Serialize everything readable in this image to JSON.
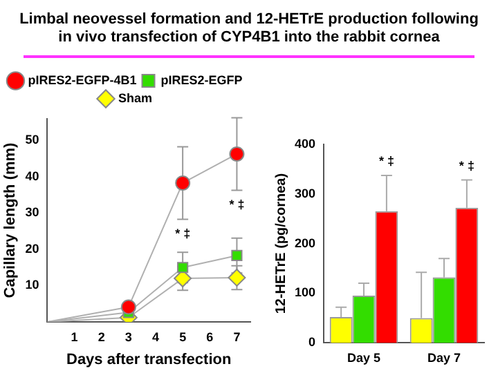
{
  "chart_data": [
    {
      "type": "line",
      "title": "Limbal neovessel formation and 12-HETrE production following in vivo transfection of CYP4B1 into the rabbit cornea",
      "xlabel": "Days after transfection",
      "ylabel": "Capillary length (mm)",
      "x": [
        0,
        3,
        5,
        7
      ],
      "xlim": [
        0,
        7.5
      ],
      "xticks": [
        1,
        2,
        3,
        4,
        5,
        6,
        7
      ],
      "ylim": [
        0,
        56
      ],
      "yticks": [
        10,
        20,
        30,
        40,
        50
      ],
      "grid": false,
      "legend": "top",
      "series": [
        {
          "name": "pIRES2-EGFP-4B1",
          "color": "#ff0000",
          "marker": "circle",
          "values": [
            0,
            4.1,
            38.3,
            46.3
          ],
          "errors": [
            null,
            null,
            10,
            10
          ]
        },
        {
          "name": "pIRES2-EGFP",
          "color": "#33dd00",
          "marker": "square",
          "values": [
            0,
            2.6,
            15,
            18.3
          ],
          "errors": [
            null,
            null,
            4.2,
            4.8
          ]
        },
        {
          "name": "Sham",
          "color": "#ffff00",
          "marker": "diamond",
          "values": [
            0,
            1.2,
            12,
            12.2
          ],
          "errors": [
            null,
            null,
            3.3,
            3.3
          ]
        }
      ],
      "annotations": [
        "* ‡",
        "* ‡"
      ]
    },
    {
      "type": "bar",
      "ylabel": "12-HETrE (pg/cornea)",
      "categories": [
        "Day 5",
        "Day 7"
      ],
      "ylim": [
        0,
        400
      ],
      "yticks": [
        0,
        100,
        200,
        300,
        400
      ],
      "grid": false,
      "legend": false,
      "series": [
        {
          "color": "#ffff00",
          "values": [
            52,
            50
          ],
          "errors": [
            [
              52,
              72
            ],
            [
              50,
              142
            ]
          ]
        },
        {
          "color": "#33dd00",
          "values": [
            95,
            132
          ],
          "errors": [
            [
              95,
              120
            ],
            [
              132,
              170
            ]
          ]
        },
        {
          "color": "#ff0000",
          "values": [
            265,
            272
          ],
          "errors": [
            [
              265,
              337
            ],
            [
              272,
              328
            ]
          ]
        }
      ],
      "annotations": [
        "* ‡",
        "* ‡"
      ]
    }
  ]
}
